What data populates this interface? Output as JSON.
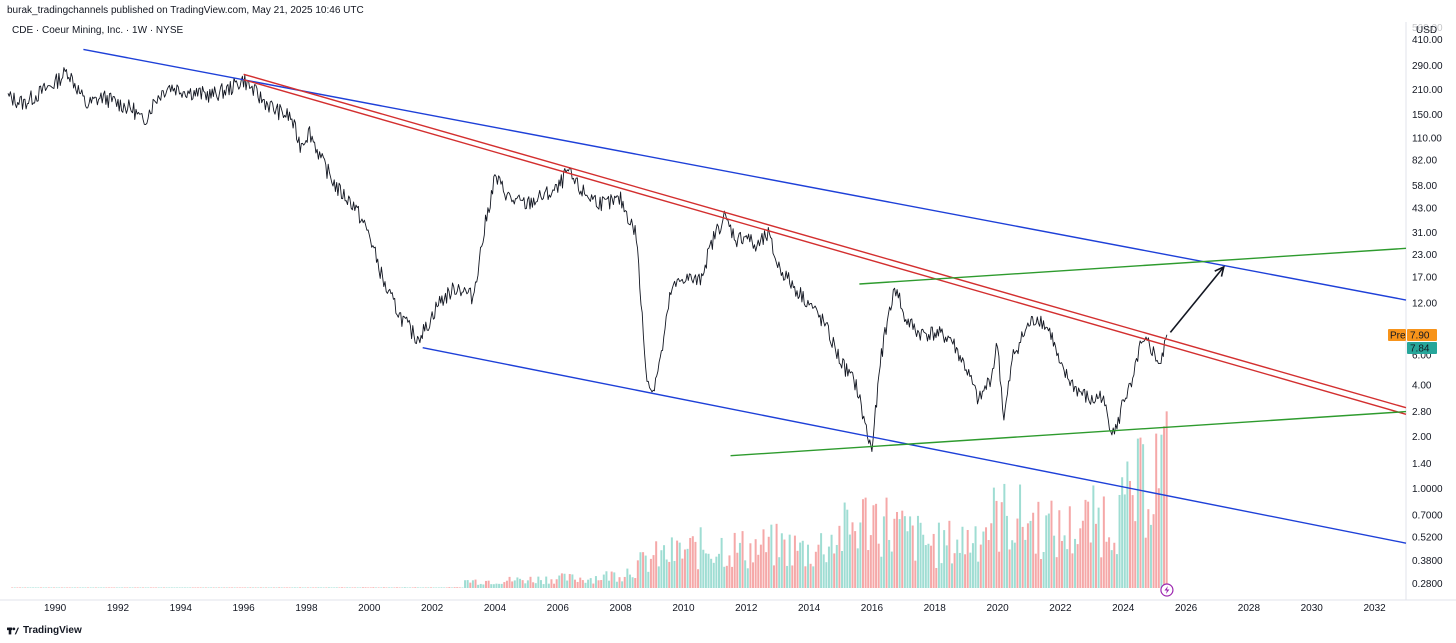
{
  "header": {
    "published_line": "burak_tradingchannels published on TradingView.com, May 21, 2025 10:46 UTC"
  },
  "footer": {
    "brand": "TradingView"
  },
  "chart_data": {
    "type": "line",
    "title": "CDE · Coeur Mining, Inc. · 1W · NYSE",
    "currency": "USD",
    "scale": "log",
    "x_range": [
      1988.5,
      2033.0
    ],
    "y_range": [
      0.23,
      520
    ],
    "y_ticks": [
      410,
      290,
      210,
      150,
      110,
      82,
      58,
      43,
      31,
      23,
      17,
      12,
      6,
      4,
      2.8,
      2,
      1.4,
      1,
      0.7,
      0.52,
      0.38,
      0.28
    ],
    "y_tick_labels": [
      "410.00",
      "290.00",
      "210.00",
      "150.00",
      "110.00",
      "82.00",
      "58.00",
      "43.00",
      "31.00",
      "23.00",
      "17.00",
      "12.00",
      "6.00",
      "4.00",
      "2.80",
      "2.00",
      "1.40",
      "1.0000",
      "0.7000",
      "0.5200",
      "0.3800",
      "0.2800"
    ],
    "top_clipped_label": "560.00",
    "x_ticks": [
      1990,
      1992,
      1994,
      1996,
      1998,
      2000,
      2002,
      2004,
      2006,
      2008,
      2010,
      2012,
      2014,
      2016,
      2018,
      2020,
      2022,
      2024,
      2026,
      2028,
      2030,
      2032
    ],
    "x_tick_labels": [
      "1990",
      "1992",
      "1994",
      "1996",
      "1998",
      "2000",
      "2002",
      "2004",
      "2006",
      "2008",
      "2010",
      "2012",
      "2014",
      "2016",
      "2018",
      "2020",
      "2022",
      "2024",
      "2026",
      "2028",
      "2030",
      "2032"
    ],
    "price_markers": [
      {
        "tag": "Pre",
        "value": "7.90",
        "color": "#f7931a"
      },
      {
        "tag": "",
        "value": "7.84",
        "color": "#26a69a"
      }
    ],
    "price_series": {
      "name": "",
      "color": "#131722",
      "points": [
        [
          1988.5,
          190
        ],
        [
          1989.0,
          175
        ],
        [
          1989.5,
          200
        ],
        [
          1990.0,
          230
        ],
        [
          1990.4,
          270
        ],
        [
          1990.7,
          215
        ],
        [
          1991.0,
          170
        ],
        [
          1991.5,
          190
        ],
        [
          1992.0,
          175
        ],
        [
          1992.5,
          160
        ],
        [
          1992.8,
          135
        ],
        [
          1993.2,
          185
        ],
        [
          1993.6,
          220
        ],
        [
          1994.0,
          210
        ],
        [
          1994.5,
          200
        ],
        [
          1995.0,
          195
        ],
        [
          1995.5,
          210
        ],
        [
          1996.0,
          240
        ],
        [
          1996.5,
          190
        ],
        [
          1997.0,
          160
        ],
        [
          1997.5,
          145
        ],
        [
          1997.8,
          100
        ],
        [
          1998.1,
          120
        ],
        [
          1998.5,
          80
        ],
        [
          1999.0,
          55
        ],
        [
          1999.5,
          45
        ],
        [
          2000.0,
          30
        ],
        [
          2000.5,
          15
        ],
        [
          2001.0,
          10
        ],
        [
          2001.5,
          7.5
        ],
        [
          2001.8,
          8.5
        ],
        [
          2002.2,
          12
        ],
        [
          2002.8,
          15
        ],
        [
          2003.3,
          13
        ],
        [
          2003.7,
          35
        ],
        [
          2004.0,
          65
        ],
        [
          2004.5,
          48
        ],
        [
          2005.0,
          45
        ],
        [
          2005.5,
          50
        ],
        [
          2006.0,
          55
        ],
        [
          2006.3,
          70
        ],
        [
          2006.7,
          55
        ],
        [
          2007.0,
          50
        ],
        [
          2007.5,
          45
        ],
        [
          2008.0,
          48
        ],
        [
          2008.5,
          30
        ],
        [
          2008.8,
          5
        ],
        [
          2009.0,
          3.6
        ],
        [
          2009.3,
          6
        ],
        [
          2009.6,
          14
        ],
        [
          2010.0,
          17
        ],
        [
          2010.5,
          16
        ],
        [
          2011.0,
          30
        ],
        [
          2011.3,
          38
        ],
        [
          2011.7,
          28
        ],
        [
          2012.0,
          30
        ],
        [
          2012.3,
          25
        ],
        [
          2012.7,
          30
        ],
        [
          2013.0,
          20
        ],
        [
          2013.5,
          15
        ],
        [
          2014.0,
          12
        ],
        [
          2014.5,
          9
        ],
        [
          2015.0,
          5.5
        ],
        [
          2015.5,
          4
        ],
        [
          2015.9,
          1.9
        ],
        [
          2016.0,
          1.7
        ],
        [
          2016.3,
          6
        ],
        [
          2016.6,
          12
        ],
        [
          2016.8,
          15
        ],
        [
          2017.0,
          10
        ],
        [
          2017.5,
          8
        ],
        [
          2018.0,
          8
        ],
        [
          2018.5,
          7.5
        ],
        [
          2019.0,
          5
        ],
        [
          2019.4,
          3.2
        ],
        [
          2019.8,
          4.5
        ],
        [
          2020.0,
          7
        ],
        [
          2020.2,
          2.5
        ],
        [
          2020.5,
          6
        ],
        [
          2021.0,
          9
        ],
        [
          2021.3,
          10
        ],
        [
          2021.7,
          8
        ],
        [
          2022.0,
          5
        ],
        [
          2022.5,
          3.8
        ],
        [
          2023.0,
          3.2
        ],
        [
          2023.3,
          3.5
        ],
        [
          2023.6,
          2.3
        ],
        [
          2023.8,
          2.2
        ],
        [
          2024.0,
          3.3
        ],
        [
          2024.3,
          4
        ],
        [
          2024.5,
          6.5
        ],
        [
          2024.8,
          7
        ],
        [
          2025.0,
          6
        ],
        [
          2025.2,
          5.2
        ],
        [
          2025.39,
          7.84
        ]
      ]
    },
    "trend_lines": [
      {
        "name": "",
        "color": "#1e40d8",
        "x": [
          1990.9,
          2033.0
        ],
        "y": [
          360,
          12.5
        ]
      },
      {
        "name": "",
        "color": "#1e40d8",
        "x": [
          2001.7,
          2033.0
        ],
        "y": [
          6.6,
          0.48
        ]
      },
      {
        "name": "",
        "color": "#d32f2f",
        "x": [
          1996.0,
          2033.0
        ],
        "y": [
          240,
          2.7
        ]
      },
      {
        "name": "",
        "color": "#d32f2f",
        "x": [
          1996.0,
          2033.0
        ],
        "y": [
          258,
          2.95
        ]
      },
      {
        "name": "",
        "color": "#2e9b2e",
        "x": [
          2015.6,
          2033.0
        ],
        "y": [
          15.5,
          25
        ]
      },
      {
        "name": "",
        "color": "#2e9b2e",
        "x": [
          2011.5,
          2033.0
        ],
        "y": [
          1.55,
          2.8
        ]
      }
    ],
    "arrow": {
      "color": "#131722",
      "from": [
        2025.5,
        8.1
      ],
      "to": [
        2027.2,
        19.5
      ]
    },
    "volume": {
      "years": [
        2004,
        2005,
        2006,
        2007,
        2008,
        2009,
        2010,
        2011,
        2012,
        2013,
        2014,
        2015,
        2016,
        2017,
        2018,
        2019,
        2020,
        2021,
        2022,
        2023,
        2024,
        2025
      ],
      "values": [
        0.06,
        0.07,
        0.08,
        0.08,
        0.12,
        0.25,
        0.3,
        0.35,
        0.32,
        0.35,
        0.3,
        0.45,
        0.6,
        0.45,
        0.35,
        0.4,
        0.6,
        0.55,
        0.45,
        0.55,
        0.65,
        1.0
      ]
    }
  }
}
